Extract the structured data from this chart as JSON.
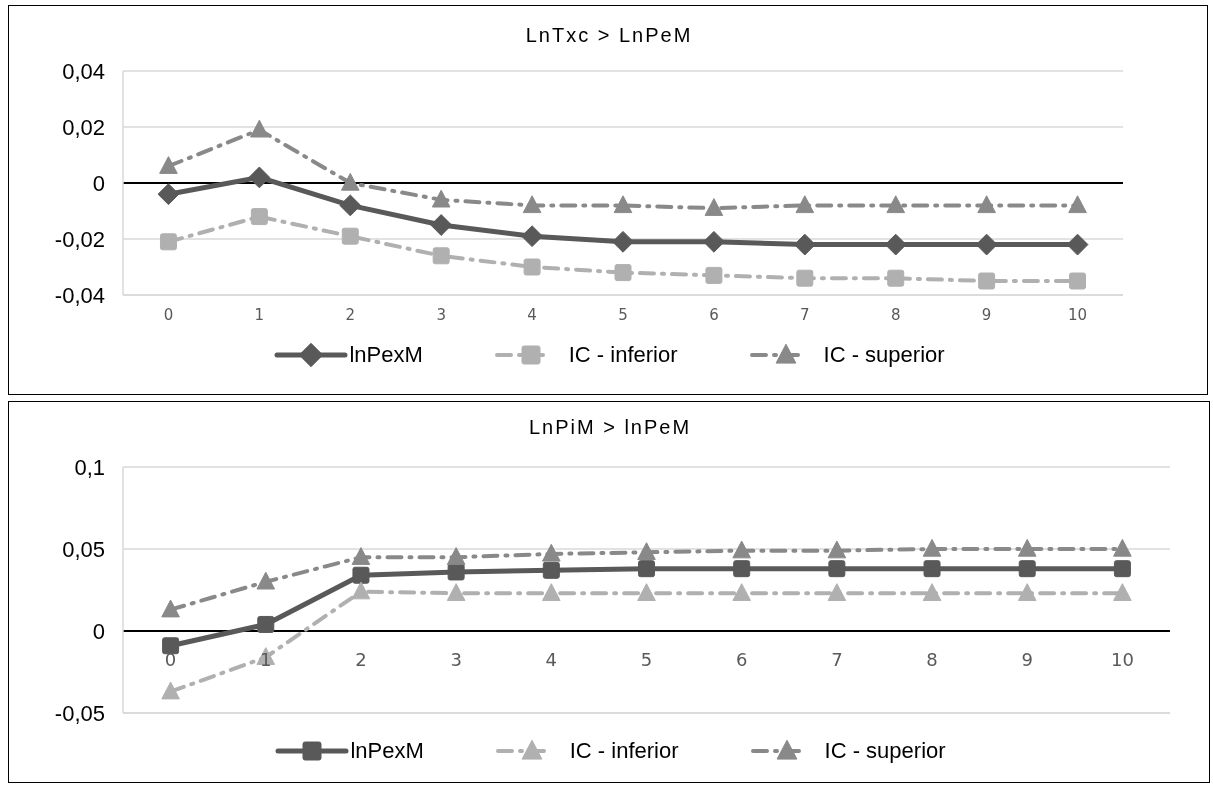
{
  "chart_data": [
    {
      "type": "line",
      "title": "LnTxc > LnPeM",
      "categories": [
        "0",
        "1",
        "2",
        "3",
        "4",
        "5",
        "6",
        "7",
        "8",
        "9",
        "10"
      ],
      "series": [
        {
          "name": "lnPexM",
          "color": "#595959",
          "marker": "diamond",
          "line_style": "solid",
          "values": [
            -0.004,
            0.002,
            -0.008,
            -0.015,
            -0.019,
            -0.021,
            -0.021,
            -0.022,
            -0.022,
            -0.022,
            -0.022
          ]
        },
        {
          "name": "IC - inferior",
          "color": "#b0b0b0",
          "marker": "square",
          "line_style": "dashed",
          "values": [
            -0.021,
            -0.012,
            -0.019,
            -0.026,
            -0.03,
            -0.032,
            -0.033,
            -0.034,
            -0.034,
            -0.035,
            -0.035
          ]
        },
        {
          "name": "IC - superior",
          "color": "#898989",
          "marker": "triangle",
          "line_style": "dashed",
          "values": [
            0.006,
            0.019,
            0.0,
            -0.006,
            -0.008,
            -0.008,
            -0.009,
            -0.008,
            -0.008,
            -0.008,
            -0.008
          ]
        }
      ],
      "ylim": [
        -0.04,
        0.04
      ],
      "yticks": [
        {
          "value": -0.04,
          "label": "-0,04"
        },
        {
          "value": -0.02,
          "label": "-0,02"
        },
        {
          "value": 0,
          "label": "0"
        },
        {
          "value": 0.02,
          "label": "0,02"
        },
        {
          "value": 0.04,
          "label": "0,04"
        }
      ],
      "grid": "y",
      "legend": "bottom"
    },
    {
      "type": "line",
      "title": "LnPiM > lnPeM",
      "categories": [
        "0",
        "1",
        "2",
        "3",
        "4",
        "5",
        "6",
        "7",
        "8",
        "9",
        "10"
      ],
      "series": [
        {
          "name": "lnPexM",
          "color": "#595959",
          "marker": "square",
          "line_style": "solid",
          "values": [
            -0.009,
            0.004,
            0.034,
            0.036,
            0.037,
            0.038,
            0.038,
            0.038,
            0.038,
            0.038,
            0.038
          ]
        },
        {
          "name": "IC - inferior",
          "color": "#b0b0b0",
          "marker": "triangle",
          "line_style": "dashed",
          "values": [
            -0.037,
            -0.016,
            0.024,
            0.023,
            0.023,
            0.023,
            0.023,
            0.023,
            0.023,
            0.023,
            0.023
          ]
        },
        {
          "name": "IC - superior",
          "color": "#898989",
          "marker": "triangle",
          "line_style": "dashed",
          "values": [
            0.013,
            0.03,
            0.045,
            0.045,
            0.047,
            0.048,
            0.049,
            0.049,
            0.05,
            0.05,
            0.05
          ]
        }
      ],
      "ylim": [
        -0.05,
        0.1
      ],
      "yticks": [
        {
          "value": -0.05,
          "label": "-0,05"
        },
        {
          "value": 0,
          "label": "0"
        },
        {
          "value": 0.05,
          "label": "0,05"
        },
        {
          "value": 0.1,
          "label": "0,1"
        }
      ],
      "grid": "y",
      "legend": "bottom"
    }
  ]
}
